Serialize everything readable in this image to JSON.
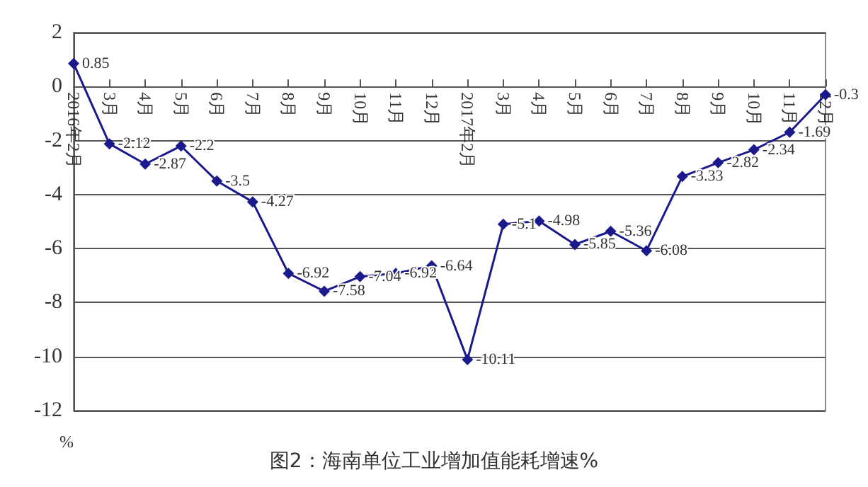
{
  "chart_data": {
    "type": "line",
    "title": "图2：海南单位工业增加值能耗增速%",
    "ylabel": "%",
    "categories": [
      "2016年2月",
      "3月",
      "4月",
      "5月",
      "6月",
      "7月",
      "8月",
      "9月",
      "10月",
      "11月",
      "12月",
      "2017年2月",
      "3月",
      "4月",
      "5月",
      "6月",
      "7月",
      "8月",
      "9月",
      "10月",
      "11月",
      "12月"
    ],
    "series": [
      {
        "color": "#1a1a8c",
        "values": [
          0.85,
          -2.12,
          -2.87,
          -2.2,
          -3.5,
          -4.27,
          -6.92,
          -7.58,
          -7.04,
          -6.92,
          -6.64,
          -10.11,
          -5.1,
          -4.98,
          -5.85,
          -5.36,
          -6.08,
          -3.33,
          -2.82,
          -2.34,
          -1.69,
          -0.3
        ]
      }
    ],
    "ylim": [
      -12,
      2
    ],
    "yticks": [
      -12,
      -10,
      -8,
      -6,
      -4,
      -2,
      0,
      2
    ],
    "grid": "y",
    "marker": "diamond",
    "line_style": "solid",
    "data_labels": true
  }
}
